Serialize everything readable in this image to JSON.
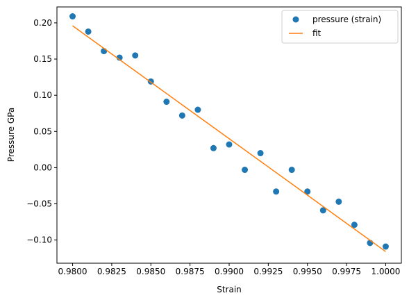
{
  "chart_data": {
    "type": "scatter",
    "title": "",
    "xlabel": "Strain",
    "ylabel": "Pressure GPa",
    "xlim": [
      0.979,
      1.001
    ],
    "ylim": [
      -0.132,
      0.222
    ],
    "x_ticks": [
      0.98,
      0.9825,
      0.985,
      0.9875,
      0.99,
      0.9925,
      0.995,
      0.9975,
      1.0
    ],
    "x_tick_labels": [
      "0.9800",
      "0.9825",
      "0.9850",
      "0.9875",
      "0.9900",
      "0.9925",
      "0.9950",
      "0.9975",
      "1.0000"
    ],
    "y_ticks": [
      -0.1,
      -0.05,
      0.0,
      0.05,
      0.1,
      0.15,
      0.2
    ],
    "y_tick_labels": [
      "−0.10",
      "−0.05",
      "0.00",
      "0.05",
      "0.10",
      "0.15",
      "0.20"
    ],
    "grid": false,
    "legend_position": "top-right",
    "series": [
      {
        "name": "pressure (strain)",
        "kind": "scatter",
        "color": "#1f77b4",
        "x": [
          0.98,
          0.981,
          0.982,
          0.983,
          0.984,
          0.985,
          0.986,
          0.987,
          0.988,
          0.989,
          0.99,
          0.991,
          0.992,
          0.993,
          0.994,
          0.995,
          0.996,
          0.997,
          0.998,
          0.999,
          1.0
        ],
        "y": [
          0.209,
          0.188,
          0.161,
          0.152,
          0.155,
          0.119,
          0.091,
          0.072,
          0.08,
          0.027,
          0.032,
          -0.003,
          0.02,
          -0.033,
          -0.003,
          -0.033,
          -0.059,
          -0.047,
          -0.079,
          -0.104,
          -0.109
        ]
      },
      {
        "name": "fit",
        "kind": "line",
        "color": "#ff7f0e",
        "x": [
          0.98,
          1.0
        ],
        "y": [
          0.196,
          -0.116
        ]
      }
    ]
  }
}
